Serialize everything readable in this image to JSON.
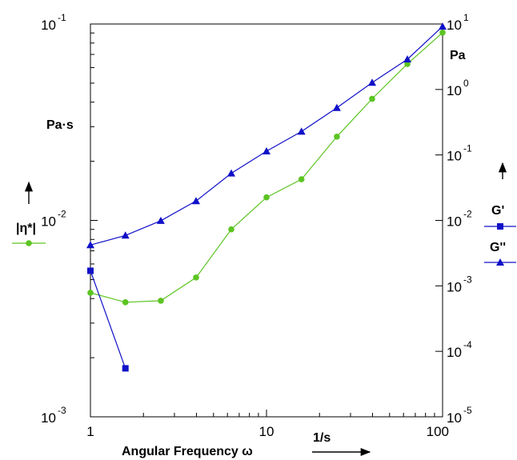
{
  "chart_data": {
    "type": "line",
    "x_scale": "log",
    "xlim": [
      1,
      100
    ],
    "x_ticks": [
      {
        "value": 1,
        "label": "1"
      },
      {
        "value": 10,
        "label": "10"
      },
      {
        "value": 100,
        "label": "100"
      }
    ],
    "xlabel": "Angular Frequency ω",
    "x_unit": "1/s",
    "y_left": {
      "scale": "log",
      "range": [
        0.001,
        0.1
      ],
      "unit": "Pa·s",
      "ticks": [
        {
          "value": 0.1,
          "base": "10",
          "exp": "-1"
        },
        {
          "value": 0.01,
          "base": "10",
          "exp": "-2"
        },
        {
          "value": 0.001,
          "base": "10",
          "exp": "-3"
        }
      ]
    },
    "y_right": {
      "scale": "log",
      "range": [
        1e-05,
        10
      ],
      "unit": "Pa",
      "ticks": [
        {
          "value": 10,
          "base": "10",
          "exp": "1"
        },
        {
          "value": 1,
          "base": "10",
          "exp": "0"
        },
        {
          "value": 0.1,
          "base": "10",
          "exp": "-1"
        },
        {
          "value": 0.01,
          "base": "10",
          "exp": "-2"
        },
        {
          "value": 0.001,
          "base": "10",
          "exp": "-3"
        },
        {
          "value": 0.0001,
          "base": "10",
          "exp": "-4"
        },
        {
          "value": 1e-05,
          "base": "10",
          "exp": "-5"
        }
      ]
    },
    "grid": false,
    "legend_placement": "right-side",
    "series": [
      {
        "name": "|η*|",
        "axis": "left",
        "color": "#5cc422",
        "marker": "circle",
        "x": [
          1,
          1.58,
          2.51,
          3.98,
          6.31,
          10,
          15.8,
          25.1,
          39.8,
          63.1,
          100
        ],
        "y": [
          0.00428,
          0.00383,
          0.0039,
          0.00512,
          0.009,
          0.0131,
          0.0162,
          0.0267,
          0.0416,
          0.0626,
          0.0904
        ]
      },
      {
        "name": "G'",
        "axis": "right",
        "color": "#1010c8",
        "marker": "square",
        "x": [
          1,
          1.58
        ],
        "y": [
          0.0017,
          5.5e-05
        ]
      },
      {
        "name": "G''",
        "axis": "right",
        "color": "#1010c8",
        "marker": "triangle",
        "x": [
          1,
          1.58,
          2.51,
          3.98,
          6.31,
          10,
          15.8,
          25.1,
          39.8,
          63.1,
          100
        ],
        "y": [
          0.0042,
          0.0059,
          0.0099,
          0.0198,
          0.0525,
          0.114,
          0.228,
          0.525,
          1.27,
          2.89,
          9.17
        ]
      }
    ]
  }
}
